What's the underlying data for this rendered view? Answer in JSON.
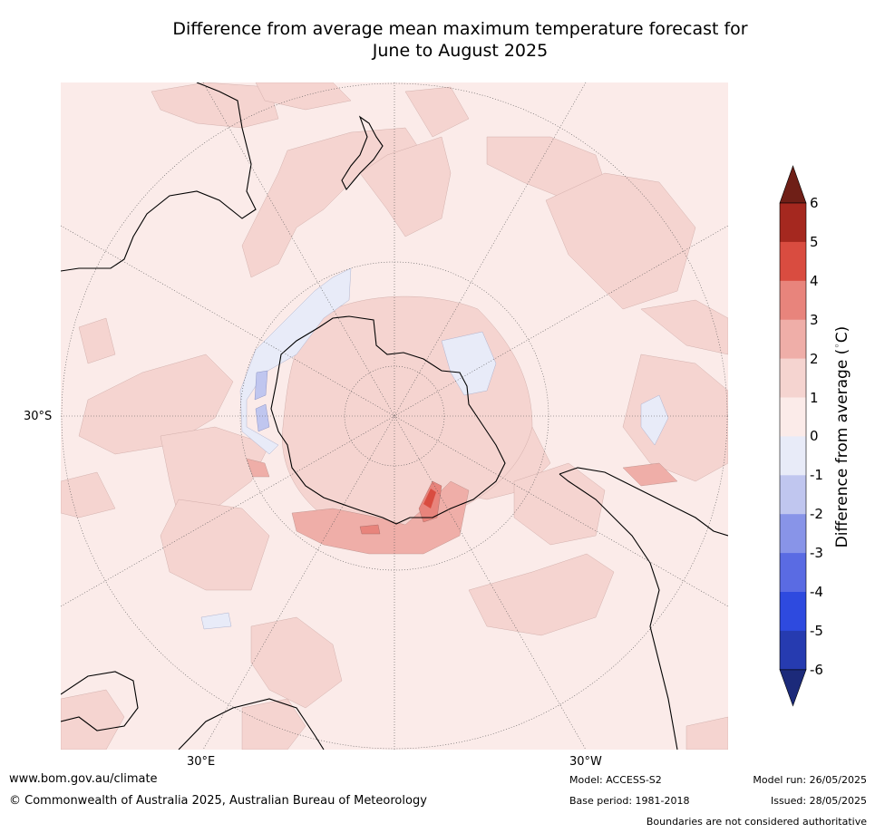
{
  "title_line1": "Difference from average mean maximum temperature forecast for",
  "title_line2": "June to August 2025",
  "map": {
    "lat_label": "30°S",
    "lon_label_left": "30°E",
    "lon_label_right": "30°W"
  },
  "colorbar": {
    "label": "Difference from average (",
    "label_unit": "°C",
    "ticks": [
      "6",
      "5",
      "4",
      "3",
      "2",
      "1",
      "0",
      "-1",
      "-2",
      "-3",
      "-4",
      "-5",
      "-6"
    ],
    "colors": [
      "#a5281f",
      "#d94c40",
      "#e8847c",
      "#efaea8",
      "#f5d4d0",
      "#fbebe9",
      "#e8ebf8",
      "#c0c6ef",
      "#8894e8",
      "#5a6be3",
      "#2e4adf",
      "#263bb0"
    ],
    "over_color": "#6f1f17",
    "under_color": "#1c2a7a"
  },
  "footer": {
    "url": "www.bom.gov.au/climate",
    "copyright": "© Commonwealth of Australia 2025, Australian Bureau of Meteorology",
    "model": "Model: ACCESS-S2",
    "base_period": "Base period: 1981-2018",
    "model_run": "Model run: 26/05/2025",
    "issued": "Issued: 28/05/2025",
    "disclaimer": "Boundaries are not considered authoritative"
  }
}
